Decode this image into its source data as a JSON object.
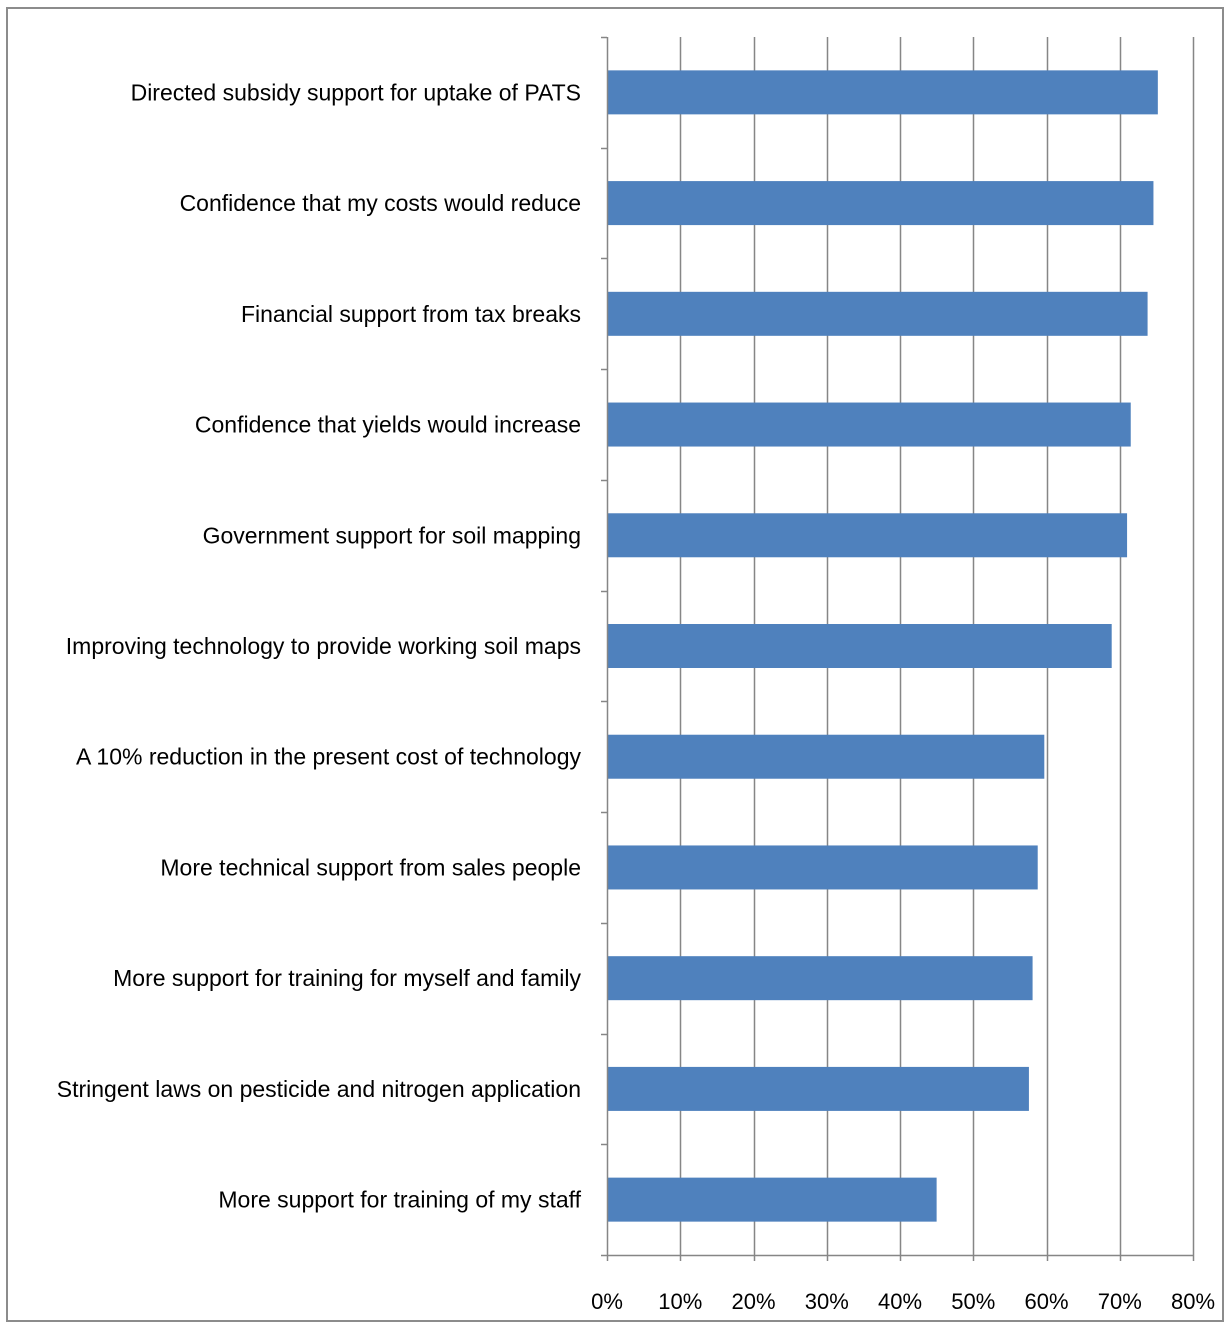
{
  "chart_data": {
    "type": "bar",
    "orientation": "horizontal",
    "categories": [
      "Directed subsidy support for uptake of PATS",
      "Confidence that my costs would reduce",
      "Financial support from tax breaks",
      "Confidence that yields would increase",
      "Government support for soil mapping",
      "Improving technology to provide working soil maps",
      "A 10% reduction in the present cost of technology",
      "More technical support from sales people",
      "More support for training for myself and family",
      "Stringent laws on pesticide and nitrogen application",
      "More support for training of my staff"
    ],
    "values": [
      75.2,
      74.6,
      73.8,
      71.5,
      71.0,
      68.9,
      59.7,
      58.8,
      58.1,
      57.6,
      45.0
    ],
    "xlim": [
      0,
      80
    ],
    "xticks": [
      "0%",
      "10%",
      "20%",
      "30%",
      "40%",
      "50%",
      "60%",
      "70%",
      "80%"
    ],
    "xtick_values": [
      0,
      10,
      20,
      30,
      40,
      50,
      60,
      70,
      80
    ],
    "grid": "vertical",
    "legend": "none",
    "bar_color": "#4f81bd",
    "grid_color": "#868686"
  }
}
